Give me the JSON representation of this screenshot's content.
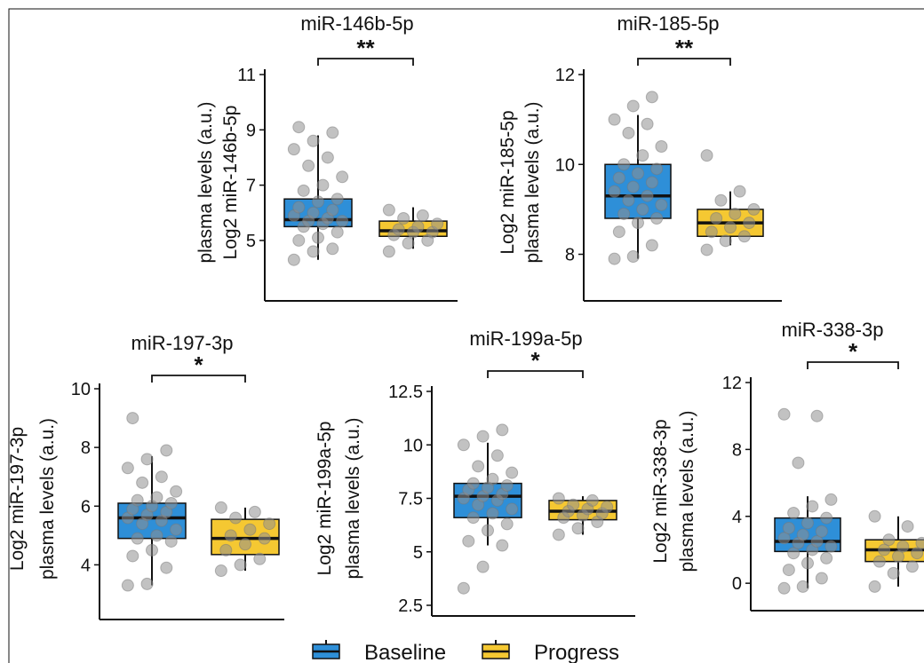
{
  "colors": {
    "baseline": "#2e8fd8",
    "progress": "#f5c832",
    "frame": "#111111",
    "dot": "#8f8f8f"
  },
  "legend": {
    "items": [
      "Baseline",
      "Progress"
    ],
    "position": "bottom"
  },
  "chart_data": [
    {
      "type": "box",
      "title": "miR-146b-5p",
      "ylabel": [
        "Log2 miR-146b-5p",
        "plasma levels (a.u.)"
      ],
      "ylim": [
        3.2,
        11
      ],
      "yticks": [
        5,
        7,
        9,
        11
      ],
      "yticklabels": [
        "5",
        "7",
        "9",
        "11"
      ],
      "significance": "**",
      "series": [
        {
          "name": "Baseline",
          "box": {
            "whislo": 4.3,
            "q1": 5.5,
            "med": 5.75,
            "q3": 6.5,
            "whishi": 8.8
          },
          "points": [
            4.3,
            4.6,
            4.7,
            5.0,
            5.1,
            5.3,
            5.5,
            5.6,
            5.7,
            5.7,
            5.8,
            5.9,
            6.0,
            6.1,
            6.2,
            6.4,
            6.5,
            6.8,
            7.0,
            7.3,
            7.7,
            8.0,
            8.3,
            8.6,
            8.9,
            9.1
          ]
        },
        {
          "name": "Progress",
          "box": {
            "whislo": 4.7,
            "q1": 5.15,
            "med": 5.35,
            "q3": 5.7,
            "whishi": 6.2
          },
          "points": [
            4.6,
            4.9,
            5.0,
            5.2,
            5.3,
            5.3,
            5.4,
            5.5,
            5.6,
            5.8,
            5.9,
            6.1
          ]
        }
      ]
    },
    {
      "type": "box",
      "title": "miR-185-5p",
      "ylabel": [
        "Log2 miR-185-5p",
        "plasma levels (a.u.)"
      ],
      "ylim": [
        7.2,
        12
      ],
      "yticks": [
        8,
        10,
        12
      ],
      "yticklabels": [
        "8",
        "10",
        "12"
      ],
      "significance": "**",
      "series": [
        {
          "name": "Baseline",
          "box": {
            "whislo": 7.9,
            "q1": 8.8,
            "med": 9.3,
            "q3": 10.0,
            "whishi": 11.1
          },
          "points": [
            7.9,
            7.95,
            8.2,
            8.5,
            8.7,
            8.8,
            8.9,
            9.0,
            9.1,
            9.2,
            9.3,
            9.4,
            9.5,
            9.6,
            9.7,
            9.8,
            9.9,
            10.0,
            10.2,
            10.4,
            10.7,
            10.9,
            11.0,
            11.3,
            11.5
          ]
        },
        {
          "name": "Progress",
          "box": {
            "whislo": 8.2,
            "q1": 8.4,
            "med": 8.7,
            "q3": 9.0,
            "whishi": 9.4
          },
          "points": [
            8.1,
            8.3,
            8.4,
            8.5,
            8.6,
            8.7,
            8.8,
            8.9,
            9.0,
            9.2,
            9.4,
            10.2
          ]
        }
      ]
    },
    {
      "type": "box",
      "title": "miR-197-3p",
      "ylabel": [
        "Log2 miR-197-3p",
        "plasma levels (a.u.)"
      ],
      "ylim": [
        2.5,
        10
      ],
      "yticks": [
        4,
        6,
        8,
        10
      ],
      "yticklabels": [
        "4",
        "6",
        "8",
        "10"
      ],
      "significance": "*",
      "series": [
        {
          "name": "Baseline",
          "box": {
            "whislo": 3.3,
            "q1": 4.9,
            "med": 5.6,
            "q3": 6.1,
            "whishi": 7.7
          },
          "points": [
            3.3,
            3.35,
            3.9,
            4.3,
            4.5,
            4.8,
            4.9,
            5.0,
            5.2,
            5.4,
            5.5,
            5.6,
            5.7,
            5.8,
            5.9,
            6.0,
            6.1,
            6.2,
            6.3,
            6.5,
            6.8,
            7.0,
            7.3,
            7.6,
            7.9,
            9.0
          ]
        },
        {
          "name": "Progress",
          "box": {
            "whislo": 3.8,
            "q1": 4.35,
            "med": 4.9,
            "q3": 5.55,
            "whishi": 5.95
          },
          "points": [
            3.8,
            4.0,
            4.2,
            4.5,
            4.7,
            4.9,
            5.0,
            5.2,
            5.4,
            5.6,
            5.8,
            5.95
          ]
        }
      ]
    },
    {
      "type": "box",
      "title": "miR-199a-5p",
      "ylabel": [
        "Log2 miR-199a-5p",
        "plasma levels (a.u.)"
      ],
      "ylim": [
        2.5,
        12.5
      ],
      "yticks": [
        2.5,
        5,
        7.5,
        10,
        12.5
      ],
      "yticklabels": [
        "2.5",
        "5",
        "7.5",
        "10",
        "12.5"
      ],
      "significance": "*",
      "series": [
        {
          "name": "Baseline",
          "box": {
            "whislo": 5.3,
            "q1": 6.6,
            "med": 7.6,
            "q3": 8.2,
            "whishi": 10.1
          },
          "points": [
            3.3,
            4.3,
            5.3,
            5.5,
            6.0,
            6.3,
            6.6,
            6.8,
            7.0,
            7.2,
            7.4,
            7.5,
            7.6,
            7.7,
            7.9,
            8.0,
            8.1,
            8.2,
            8.4,
            8.7,
            9.0,
            9.5,
            10.0,
            10.4,
            10.7
          ]
        },
        {
          "name": "Progress",
          "box": {
            "whislo": 5.8,
            "q1": 6.5,
            "med": 6.9,
            "q3": 7.4,
            "whishi": 7.6
          },
          "points": [
            5.8,
            6.1,
            6.4,
            6.6,
            6.7,
            6.8,
            6.9,
            7.0,
            7.1,
            7.2,
            7.4,
            7.5
          ]
        }
      ]
    },
    {
      "type": "box",
      "title": "miR-338-3p",
      "ylabel": [
        "Log2 miR-338-3p",
        "plasma levels (a.u.)"
      ],
      "ylim": [
        -1,
        12
      ],
      "yticks": [
        0,
        4,
        8,
        12
      ],
      "yticklabels": [
        "0",
        "4",
        "8",
        "12"
      ],
      "significance": "*",
      "series": [
        {
          "name": "Baseline",
          "box": {
            "whislo": -0.3,
            "q1": 1.9,
            "med": 2.5,
            "q3": 3.9,
            "whishi": 5.2
          },
          "points": [
            -0.3,
            -0.2,
            0.3,
            0.8,
            1.2,
            1.5,
            1.8,
            2.0,
            2.2,
            2.4,
            2.5,
            2.7,
            2.9,
            3.1,
            3.3,
            3.6,
            3.9,
            4.2,
            4.6,
            5.0,
            7.2,
            10.0,
            10.1
          ]
        },
        {
          "name": "Progress",
          "box": {
            "whislo": -0.2,
            "q1": 1.3,
            "med": 2.0,
            "q3": 2.6,
            "whishi": 4.0
          },
          "points": [
            -0.2,
            0.6,
            1.0,
            1.3,
            1.6,
            1.8,
            2.0,
            2.2,
            2.4,
            2.6,
            3.4,
            4.0
          ]
        }
      ]
    }
  ]
}
